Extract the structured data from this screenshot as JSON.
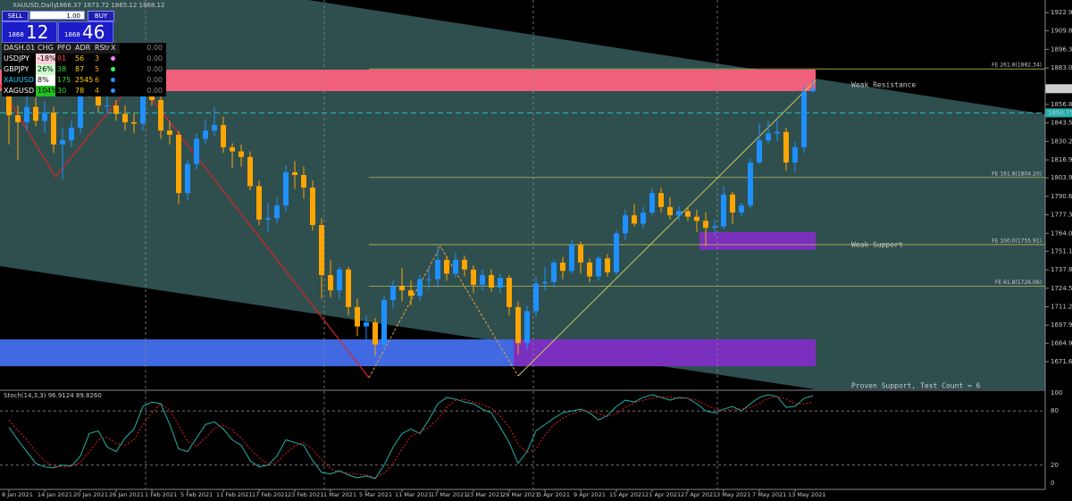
{
  "header": {
    "symbol": "XAUUSD,Daily",
    "ohlc": "1866.37 1873.72 1865.12 1868.12"
  },
  "trade": {
    "sell": "SELL",
    "lot": "1.00",
    "buy": "BUY",
    "bid_small": "1868",
    "bid_big": "12",
    "ask_small": "1868",
    "ask_big": "46"
  },
  "dashboard": {
    "header": [
      "DASH.01",
      "CHG",
      "PFO",
      "ADR",
      "RStr",
      "X",
      "0.00"
    ],
    "rows": [
      [
        "USDJPY",
        "-18%",
        "81",
        "56",
        "3",
        "0.00"
      ],
      [
        "GBPJPY",
        "26%",
        "38",
        "87",
        "5",
        "0.00"
      ],
      [
        "XAUUSD",
        "8%",
        "175",
        "2545",
        "6",
        "0.00"
      ],
      [
        "XAGUSD",
        "104%",
        "30",
        "78",
        "4",
        "0.00"
      ]
    ]
  },
  "chart_data": {
    "type": "candlestick",
    "categories": [
      "8 Jan 2021",
      null,
      null,
      null,
      "14 Jan 2021",
      null,
      null,
      null,
      "20 Jan 2021",
      null,
      null,
      null,
      "26 Jan 2021",
      null,
      null,
      null,
      "1 Feb 2021",
      null,
      null,
      null,
      "5 Feb 2021",
      null,
      null,
      null,
      "11 Feb 2021",
      null,
      null,
      null,
      "17 Feb 2021",
      null,
      null,
      null,
      "23 Feb 2021",
      null,
      null,
      null,
      "1 Mar 2021",
      null,
      null,
      null,
      "5 Mar 2021",
      null,
      null,
      null,
      "11 Mar 2021",
      null,
      null,
      null,
      "17 Mar 2021",
      null,
      null,
      null,
      "23 Mar 2021",
      null,
      null,
      null,
      "29 Mar 2021",
      null,
      null,
      null,
      "5 Apr 2021",
      null,
      null,
      null,
      "9 Apr 2021",
      null,
      null,
      null,
      "15 Apr 2021",
      null,
      null,
      null,
      "21 Apr 2021",
      null,
      null,
      null,
      "27 Apr 2021",
      null,
      null,
      null,
      "3 May 2021",
      null,
      null,
      null,
      "7 May 2021",
      null,
      null,
      null,
      "13 May 2021",
      null,
      null
    ],
    "open": [
      1913,
      1849,
      1844,
      1855,
      1845,
      1851,
      1828,
      1831,
      1840,
      1871,
      1870,
      1856,
      1856,
      1850,
      1844,
      1843,
      1863,
      1860,
      1838,
      1835,
      1793,
      1814,
      1832,
      1838,
      1842,
      1826,
      1823,
      1819,
      1798,
      1774,
      1775,
      1784,
      1808,
      1806,
      1797,
      1770,
      1734,
      1723,
      1738,
      1711,
      1697,
      1700,
      1684,
      1716,
      1726,
      1723,
      1719,
      1731,
      1731,
      1745,
      1735,
      1745,
      1738,
      1727,
      1734,
      1725,
      1732,
      1711,
      1685,
      1708,
      1728,
      1729,
      1743,
      1737,
      1756,
      1743,
      1733,
      1746,
      1736,
      1764,
      1777,
      1771,
      1779,
      1793,
      1783,
      1777,
      1780,
      1776,
      1773,
      1768,
      1769,
      1792,
      1779,
      1784,
      1815,
      1831,
      1836,
      1837,
      1815,
      1826,
      1866.37
    ],
    "high": [
      1917,
      1856,
      1863,
      1862,
      1859,
      1855,
      1840,
      1845,
      1874,
      1876,
      1873,
      1867,
      1860,
      1856,
      1851,
      1867,
      1875,
      1866,
      1845,
      1838,
      1817,
      1836,
      1846,
      1855,
      1848,
      1829,
      1828,
      1823,
      1802,
      1786,
      1790,
      1813,
      1816,
      1812,
      1802,
      1775,
      1745,
      1740,
      1740,
      1717,
      1705,
      1703,
      1719,
      1730,
      1739,
      1730,
      1734,
      1740,
      1755,
      1748,
      1750,
      1748,
      1741,
      1738,
      1738,
      1735,
      1734,
      1715,
      1712,
      1733,
      1740,
      1745,
      1747,
      1759,
      1758,
      1746,
      1748,
      1749,
      1766,
      1781,
      1785,
      1783,
      1797,
      1797,
      1790,
      1784,
      1783,
      1781,
      1779,
      1774,
      1798,
      1794,
      1786,
      1818,
      1843,
      1845,
      1846,
      1840,
      1830,
      1870,
      1873.72
    ],
    "low": [
      1828,
      1817,
      1838,
      1841,
      1836,
      1822,
      1803,
      1826,
      1836,
      1862,
      1851,
      1850,
      1845,
      1838,
      1836,
      1838,
      1856,
      1832,
      1828,
      1785,
      1788,
      1810,
      1828,
      1834,
      1822,
      1811,
      1812,
      1795,
      1770,
      1765,
      1771,
      1780,
      1796,
      1789,
      1766,
      1717,
      1718,
      1717,
      1705,
      1690,
      1686,
      1676,
      1680,
      1710,
      1715,
      1712,
      1715,
      1724,
      1725,
      1730,
      1732,
      1733,
      1721,
      1723,
      1722,
      1721,
      1705,
      1677,
      1680,
      1704,
      1723,
      1725,
      1731,
      1735,
      1735,
      1729,
      1730,
      1733,
      1734,
      1759,
      1769,
      1767,
      1777,
      1779,
      1774,
      1773,
      1773,
      1765,
      1755,
      1763,
      1767,
      1771,
      1776,
      1782,
      1814,
      1829,
      1830,
      1809,
      1808,
      1822,
      1865.12
    ],
    "close": [
      1849,
      1844,
      1855,
      1845,
      1851,
      1828,
      1831,
      1840,
      1871,
      1870,
      1856,
      1856,
      1850,
      1844,
      1843,
      1863,
      1860,
      1838,
      1835,
      1793,
      1814,
      1832,
      1838,
      1842,
      1826,
      1823,
      1819,
      1798,
      1774,
      1775,
      1784,
      1808,
      1806,
      1797,
      1770,
      1734,
      1723,
      1738,
      1711,
      1697,
      1700,
      1684,
      1716,
      1726,
      1723,
      1719,
      1731,
      1731,
      1745,
      1735,
      1745,
      1738,
      1727,
      1734,
      1725,
      1732,
      1711,
      1685,
      1708,
      1728,
      1729,
      1743,
      1737,
      1756,
      1743,
      1733,
      1746,
      1736,
      1764,
      1777,
      1771,
      1779,
      1793,
      1783,
      1777,
      1780,
      1776,
      1773,
      1768,
      1769,
      1792,
      1779,
      1784,
      1815,
      1831,
      1836,
      1837,
      1815,
      1826,
      1866,
      1868.12
    ],
    "up_color": "#1e90ff",
    "down_color": "#ffa500",
    "ylim": [
      1651.75,
      1931.95
    ],
    "yticks": [
      1922.95,
      {
        "value": 1909.8,
        "label": "1909.80"
      },
      1896.35,
      1883.05,
      {
        "value": 1856.8,
        "label": "1856.80"
      },
      {
        "value": 1843.5,
        "label": "1843.50"
      },
      {
        "value": 1830.2,
        "label": "1830.20"
      },
      {
        "value": 1816.9,
        "label": "1816.90"
      },
      1803.95,
      1790.65,
      1777.35,
      1764.05,
      {
        "value": 1751.1,
        "label": "1751.10"
      },
      {
        "value": 1737.8,
        "label": "1737.80"
      },
      {
        "value": 1724.5,
        "label": "1724.50"
      },
      {
        "value": 1711.2,
        "label": "1711.20"
      },
      {
        "value": 1697.9,
        "label": "1697.90"
      },
      1684.95,
      1671.65
    ],
    "marker_line": 1850.75,
    "levels": [
      {
        "label": "FE 261.8(1882.34)",
        "value": 1882.34
      },
      {
        "label": "FE 161.8(1804.20)",
        "value": 1804.2
      },
      {
        "label": "FE 100.0(1755.91)",
        "value": 1755.91
      },
      {
        "label": "FE 61.8(1726.06)",
        "value": 1726.06
      }
    ],
    "zones": [
      {
        "from": 1866.4,
        "to": 1881.8,
        "color": "#f0607a",
        "text": "Weak Resistance"
      },
      {
        "from": 1668.4,
        "to": 1687.7,
        "color": "#4169e1",
        "text": "Proven Support, Test Count = 6"
      },
      {
        "from": 1668.4,
        "to": 1687.7,
        "color": "#7b2fbe"
      },
      {
        "from": 1752.1,
        "to": 1764.9,
        "color": "#7b2fbe",
        "text": "Weak Support"
      }
    ],
    "stochastic": {
      "title": "Stoch(14,3,3) 96.9124 89.8260",
      "ylim": [
        0,
        100
      ],
      "yticks": [
        0,
        20,
        80,
        100
      ],
      "series": [
        {
          "color": "#20b2aa",
          "values": [
            62,
            48,
            35,
            22,
            18,
            17,
            20,
            19,
            30,
            55,
            58,
            40,
            35,
            50,
            60,
            85,
            90,
            88,
            65,
            38,
            35,
            50,
            65,
            68,
            60,
            48,
            42,
            25,
            18,
            20,
            30,
            48,
            45,
            42,
            25,
            12,
            10,
            14,
            9,
            6,
            8,
            5,
            20,
            40,
            55,
            60,
            55,
            70,
            88,
            95,
            93,
            90,
            88,
            82,
            78,
            62,
            45,
            22,
            35,
            58,
            65,
            72,
            78,
            80,
            82,
            78,
            70,
            75,
            85,
            92,
            90,
            95,
            98,
            95,
            92,
            95,
            94,
            88,
            80,
            78,
            82,
            85,
            80,
            88,
            95,
            98,
            96,
            84,
            85,
            94,
            96.9124
          ]
        },
        {
          "color": "#e02020",
          "values": [
            70,
            58,
            48,
            35,
            25,
            19,
            18,
            19,
            23,
            35,
            48,
            51,
            44,
            42,
            48,
            65,
            78,
            88,
            81,
            64,
            46,
            41,
            50,
            61,
            64,
            59,
            50,
            38,
            28,
            21,
            23,
            33,
            41,
            45,
            37,
            26,
            16,
            12,
            11,
            10,
            9,
            6,
            11,
            22,
            38,
            52,
            57,
            62,
            71,
            84,
            92,
            93,
            90,
            87,
            83,
            74,
            62,
            43,
            34,
            38,
            53,
            65,
            72,
            77,
            80,
            80,
            77,
            74,
            77,
            84,
            89,
            92,
            94,
            96,
            95,
            94,
            94,
            92,
            87,
            82,
            80,
            82,
            82,
            84,
            88,
            94,
            96,
            93,
            88,
            88,
            89.826
          ]
        }
      ]
    }
  }
}
